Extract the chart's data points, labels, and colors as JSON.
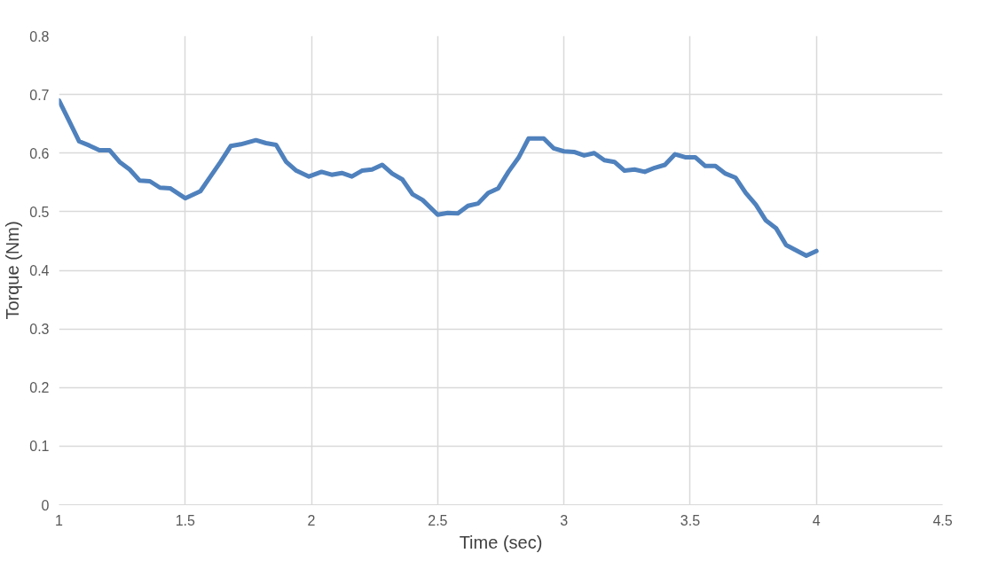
{
  "chart_data": {
    "type": "line",
    "xlabel": "Time (sec)",
    "ylabel": "Torque (Nm)",
    "x": [
      1.0,
      1.04,
      1.08,
      1.12,
      1.16,
      1.2,
      1.24,
      1.28,
      1.32,
      1.36,
      1.4,
      1.44,
      1.5,
      1.56,
      1.6,
      1.64,
      1.68,
      1.72,
      1.78,
      1.82,
      1.86,
      1.9,
      1.94,
      1.99,
      2.04,
      2.08,
      2.12,
      2.16,
      2.2,
      2.24,
      2.28,
      2.32,
      2.36,
      2.4,
      2.44,
      2.5,
      2.54,
      2.58,
      2.62,
      2.66,
      2.7,
      2.74,
      2.78,
      2.82,
      2.86,
      2.92,
      2.96,
      3.0,
      3.04,
      3.08,
      3.12,
      3.16,
      3.2,
      3.24,
      3.28,
      3.32,
      3.36,
      3.4,
      3.44,
      3.48,
      3.52,
      3.56,
      3.6,
      3.64,
      3.68,
      3.72,
      3.76,
      3.8,
      3.84,
      3.88,
      3.92,
      3.96,
      4.0
    ],
    "series": [
      {
        "color": "#4f81bd",
        "values": [
          0.69,
          0.655,
          0.62,
          0.613,
          0.605,
          0.605,
          0.585,
          0.572,
          0.553,
          0.552,
          0.541,
          0.54,
          0.523,
          0.535,
          0.56,
          0.585,
          0.612,
          0.615,
          0.622,
          0.617,
          0.614,
          0.585,
          0.57,
          0.56,
          0.568,
          0.563,
          0.566,
          0.56,
          0.57,
          0.572,
          0.58,
          0.565,
          0.555,
          0.53,
          0.52,
          0.495,
          0.498,
          0.497,
          0.51,
          0.514,
          0.532,
          0.54,
          0.568,
          0.592,
          0.625,
          0.625,
          0.608,
          0.603,
          0.602,
          0.596,
          0.6,
          0.588,
          0.585,
          0.57,
          0.572,
          0.568,
          0.575,
          0.58,
          0.598,
          0.593,
          0.593,
          0.578,
          0.578,
          0.565,
          0.558,
          0.532,
          0.512,
          0.485,
          0.472,
          0.443,
          0.434,
          0.425,
          0.433
        ]
      }
    ],
    "xlim": [
      1,
      4.5
    ],
    "xticks": [
      1,
      1.5,
      2,
      2.5,
      3,
      3.5,
      4,
      4.5
    ],
    "ylim": [
      0,
      0.8
    ],
    "yticks": [
      0,
      0.1,
      0.2,
      0.3,
      0.4,
      0.5,
      0.6,
      0.7,
      0.8
    ],
    "grid": true,
    "marker": "none",
    "line_style": "solid"
  }
}
